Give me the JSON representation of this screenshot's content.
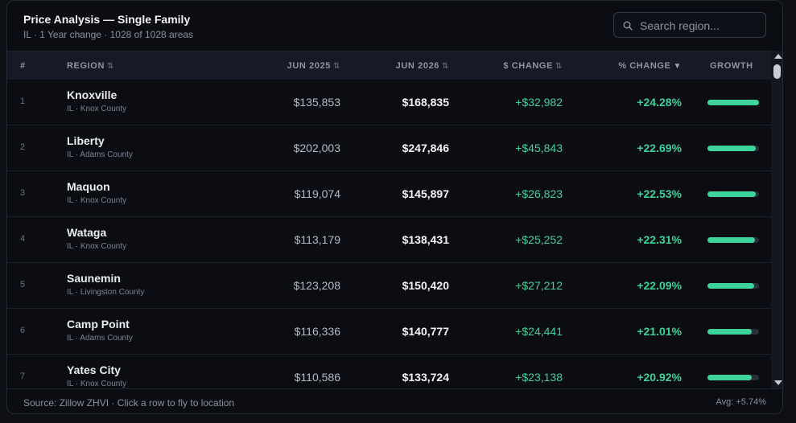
{
  "header": {
    "title": "Price Analysis — Single Family",
    "subtitle": "IL · 1 Year change · 1028 of 1028 areas",
    "search_placeholder": "Search region..."
  },
  "columns": {
    "num": "#",
    "region": "REGION",
    "jun2025": "JUN 2025",
    "jun2026": "JUN 2026",
    "change": "$ CHANGE",
    "pct_change": "% CHANGE",
    "growth": "GROWTH",
    "sort_icon": "⇅",
    "sort_active_icon": "▼"
  },
  "rows": [
    {
      "num": "1",
      "name": "Knoxville",
      "location": "IL · Knox County",
      "jun2025": "$135,853",
      "jun2026": "$168,835",
      "change": "+$32,982",
      "pct": "+24.28%",
      "growth": 1.0
    },
    {
      "num": "2",
      "name": "Liberty",
      "location": "IL · Adams County",
      "jun2025": "$202,003",
      "jun2026": "$247,846",
      "change": "+$45,843",
      "pct": "+22.69%",
      "growth": 0.935
    },
    {
      "num": "3",
      "name": "Maquon",
      "location": "IL · Knox County",
      "jun2025": "$119,074",
      "jun2026": "$145,897",
      "change": "+$26,823",
      "pct": "+22.53%",
      "growth": 0.93
    },
    {
      "num": "4",
      "name": "Wataga",
      "location": "IL · Knox County",
      "jun2025": "$113,179",
      "jun2026": "$138,431",
      "change": "+$25,252",
      "pct": "+22.31%",
      "growth": 0.92
    },
    {
      "num": "5",
      "name": "Saunemin",
      "location": "IL · Livingston County",
      "jun2025": "$123,208",
      "jun2026": "$150,420",
      "change": "+$27,212",
      "pct": "+22.09%",
      "growth": 0.91
    },
    {
      "num": "6",
      "name": "Camp Point",
      "location": "IL · Adams County",
      "jun2025": "$116,336",
      "jun2026": "$140,777",
      "change": "+$24,441",
      "pct": "+21.01%",
      "growth": 0.865
    },
    {
      "num": "7",
      "name": "Yates City",
      "location": "IL · Knox County",
      "jun2025": "$110,586",
      "jun2026": "$133,724",
      "change": "+$23,138",
      "pct": "+20.92%",
      "growth": 0.86
    }
  ],
  "footer": {
    "source": "Source: Zillow ZHVI · Click a row to fly to location",
    "avg": "Avg: +5.74%"
  },
  "colors": {
    "positive": "#3fd19a",
    "bar": "#3dd39b",
    "panel_bg": "#0b0d13",
    "header_bg": "#161a24"
  }
}
